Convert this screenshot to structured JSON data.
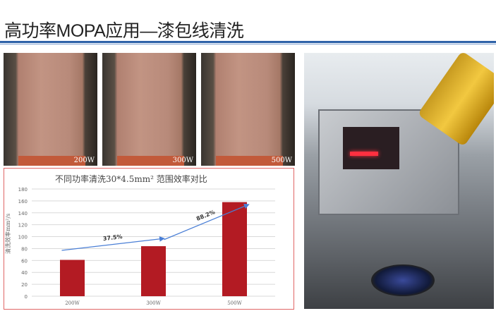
{
  "header": {
    "title": "高功率MOPA应用—漆包线清洗"
  },
  "samples": [
    {
      "label": "200W"
    },
    {
      "label": "300W"
    },
    {
      "label": "500W"
    }
  ],
  "colors": {
    "accent": "#2e62a8",
    "bar": "#b31b23",
    "arrow": "#4a7fd6",
    "frame": "#e06666"
  },
  "chart_data": {
    "type": "bar",
    "title": "不同功率清洗30*4.5mm² 范围效率对比",
    "xlabel": "",
    "ylabel": "清洗效率mm²/s",
    "categories": [
      "200W",
      "300W",
      "500W"
    ],
    "values": [
      61,
      84,
      158
    ],
    "ylim": [
      0,
      180
    ],
    "yticks": [
      0,
      20,
      40,
      60,
      80,
      100,
      120,
      140,
      160,
      180
    ],
    "grid": true,
    "annotations": [
      {
        "text": "37.5%",
        "from": "200W",
        "to": "300W"
      },
      {
        "text": "88.2%",
        "from": "300W",
        "to": "500W"
      }
    ]
  }
}
